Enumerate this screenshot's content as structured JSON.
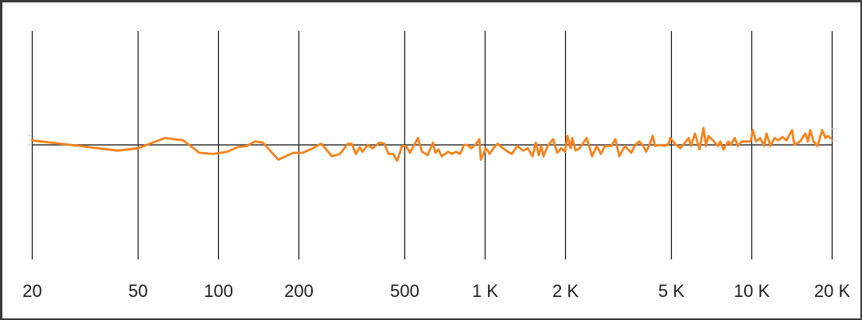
{
  "chart_data": {
    "type": "line",
    "title": "",
    "xlabel": "",
    "ylabel": "",
    "x_scale": "log",
    "xlim": [
      20,
      20000
    ],
    "ylim": [
      -10,
      10
    ],
    "grid": {
      "vertical": true,
      "horizontal": false,
      "zero_line": true
    },
    "x_ticks": [
      {
        "value": 20,
        "label": "20"
      },
      {
        "value": 50,
        "label": "50"
      },
      {
        "value": 100,
        "label": "100"
      },
      {
        "value": 200,
        "label": "200"
      },
      {
        "value": 500,
        "label": "500"
      },
      {
        "value": 1000,
        "label": "1 K"
      },
      {
        "value": 2000,
        "label": "2 K"
      },
      {
        "value": 5000,
        "label": "5 K"
      },
      {
        "value": 10000,
        "label": "10 K"
      },
      {
        "value": 20000,
        "label": "20 K"
      }
    ],
    "colors": {
      "series": "#f7821b",
      "grid": "#111111",
      "zero_line": "#333333",
      "frame": "#3a3a3a"
    },
    "series": [
      {
        "points": [
          [
            20,
            0.4
          ],
          [
            30.2,
            -0.1
          ],
          [
            42,
            -0.5
          ],
          [
            50,
            -0.3
          ],
          [
            63,
            0.6
          ],
          [
            74,
            0.4
          ],
          [
            85,
            -0.7
          ],
          [
            96,
            -0.8
          ],
          [
            108,
            -0.6
          ],
          [
            118,
            -0.2
          ],
          [
            128,
            -0.1
          ],
          [
            137,
            0.3
          ],
          [
            147,
            0.2
          ],
          [
            168,
            -1.3
          ],
          [
            191,
            -0.7
          ],
          [
            207,
            -0.7
          ],
          [
            226,
            -0.3
          ],
          [
            238,
            0
          ],
          [
            244,
            0.1
          ],
          [
            267,
            -1.0
          ],
          [
            286,
            -0.8
          ],
          [
            306,
            0.1
          ],
          [
            317,
            0.1
          ],
          [
            328,
            -0.8
          ],
          [
            340,
            -0.2
          ],
          [
            347,
            -0.6
          ],
          [
            364,
            0
          ],
          [
            379,
            -0.3
          ],
          [
            403,
            0.2
          ],
          [
            420,
            0.1
          ],
          [
            435,
            -0.8
          ],
          [
            453,
            -0.8
          ],
          [
            469,
            -1.4
          ],
          [
            489,
            -0.1
          ],
          [
            506,
            -0.1
          ],
          [
            524,
            -0.7
          ],
          [
            561,
            0.6
          ],
          [
            581,
            -0.6
          ],
          [
            610,
            -0.9
          ],
          [
            639,
            0.2
          ],
          [
            652,
            -0.7
          ],
          [
            670,
            -0.4
          ],
          [
            689,
            -1.0
          ],
          [
            728,
            -0.6
          ],
          [
            754,
            -0.8
          ],
          [
            780,
            -0.6
          ],
          [
            807,
            -0.8
          ],
          [
            836,
            0
          ],
          [
            859,
            0
          ],
          [
            889,
            -0.3
          ],
          [
            920,
            0
          ],
          [
            953,
            0.5
          ],
          [
            966,
            -1.3
          ],
          [
            973,
            -1.1
          ],
          [
            993,
            -0.7
          ],
          [
            1005,
            -0.3
          ],
          [
            1027,
            -0.5
          ],
          [
            1041,
            -0.8
          ],
          [
            1077,
            -0.3
          ],
          [
            1115,
            0.1
          ],
          [
            1170,
            -0.3
          ],
          [
            1219,
            -0.6
          ],
          [
            1262,
            -0.8
          ],
          [
            1324,
            -0.1
          ],
          [
            1390,
            -0.5
          ],
          [
            1449,
            -0.3
          ],
          [
            1510,
            -1.0
          ],
          [
            1552,
            0.2
          ],
          [
            1593,
            -0.9
          ],
          [
            1626,
            -0.1
          ],
          [
            1660,
            -1.0
          ],
          [
            1718,
            -0.1
          ],
          [
            1803,
            0.5
          ],
          [
            1867,
            -0.7
          ],
          [
            1932,
            -0.3
          ],
          [
            2000,
            -0.6
          ],
          [
            2042,
            0.8
          ],
          [
            2099,
            -0.3
          ],
          [
            2128,
            0.6
          ],
          [
            2188,
            -0.5
          ],
          [
            2265,
            -0.3
          ],
          [
            2328,
            0.1
          ],
          [
            2410,
            0.6
          ],
          [
            2460,
            -0.1
          ],
          [
            2525,
            -1.0
          ],
          [
            2630,
            -0.1
          ],
          [
            2724,
            -0.8
          ],
          [
            2820,
            -0.1
          ],
          [
            2980,
            -0.1
          ],
          [
            3085,
            0.5
          ],
          [
            3193,
            -1.0
          ],
          [
            3350,
            -0.1
          ],
          [
            3540,
            -0.7
          ],
          [
            3665,
            0
          ],
          [
            3795,
            0.3
          ],
          [
            3900,
            0
          ],
          [
            4030,
            -0.6
          ],
          [
            4140,
            0
          ],
          [
            4260,
            0.8
          ],
          [
            4345,
            -0.1
          ],
          [
            4560,
            0
          ],
          [
            4720,
            -0.1
          ],
          [
            4890,
            0.1
          ],
          [
            4955,
            0.6
          ],
          [
            5165,
            0.1
          ],
          [
            5420,
            -0.3
          ],
          [
            5810,
            0.6
          ],
          [
            5930,
            -0.1
          ],
          [
            6140,
            1.0
          ],
          [
            6380,
            -0.4
          ],
          [
            6610,
            1.5
          ],
          [
            6750,
            -0.1
          ],
          [
            6890,
            0.8
          ],
          [
            7230,
            0.3
          ],
          [
            7490,
            -0.1
          ],
          [
            7640,
            0.3
          ],
          [
            7850,
            -0.4
          ],
          [
            8185,
            0.3
          ],
          [
            8360,
            0
          ],
          [
            8650,
            0.6
          ],
          [
            8890,
            -0.1
          ],
          [
            9200,
            0.3
          ],
          [
            9590,
            0.3
          ],
          [
            9930,
            0.3
          ],
          [
            10120,
            1.3
          ],
          [
            10400,
            0.3
          ],
          [
            10770,
            0.6
          ],
          [
            11150,
            -0.1
          ],
          [
            11380,
            1.0
          ],
          [
            11780,
            -0.1
          ],
          [
            12200,
            0.6
          ],
          [
            12620,
            0.4
          ],
          [
            13060,
            0.7
          ],
          [
            13520,
            0.4
          ],
          [
            14190,
            1.3
          ],
          [
            14490,
            0
          ],
          [
            15200,
            0.3
          ],
          [
            15930,
            1.0
          ],
          [
            16270,
            0.3
          ],
          [
            16600,
            1.3
          ],
          [
            17070,
            0.3
          ],
          [
            17670,
            -0.1
          ],
          [
            18420,
            1.3
          ],
          [
            18940,
            0.6
          ],
          [
            19330,
            0.8
          ],
          [
            19740,
            0.6
          ]
        ]
      }
    ]
  }
}
